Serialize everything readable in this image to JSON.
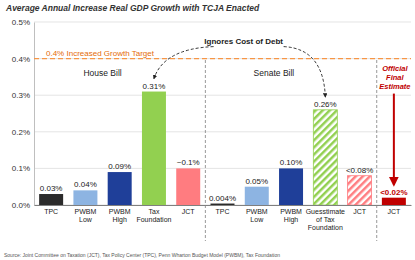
{
  "chart_data": {
    "type": "bar",
    "title": "Average Annual Increase Real GDP Growth with TCJA Enacted",
    "categories": [
      "TPC",
      "PWBM\nLow",
      "PWBM\nHigh",
      "Tax\nFoundation",
      "JCT",
      "TPC",
      "PWBM\nLow",
      "PWBM\nHigh",
      "Guesstimate\nof Tax\nFoundation",
      "JCT",
      "JCT"
    ],
    "values": [
      0.03,
      0.04,
      0.09,
      0.31,
      0.1,
      0.004,
      0.05,
      0.1,
      0.26,
      0.08,
      0.02
    ],
    "value_labels": [
      "0.03%",
      "0.04%",
      "0.09%",
      "0.31%",
      "~0.1%",
      "0.004%",
      "0.05%",
      "0.10%",
      "0.26%",
      "<0.08%",
      "<0.02%"
    ],
    "colors": [
      "#2b2b2b",
      "#8db4e2",
      "#1f3f99",
      "#92d050",
      "#ff7c80",
      "#2b2b2b",
      "#8db4e2",
      "#1f3f99",
      "#92d050",
      "#ff7c80",
      "#c00000"
    ],
    "ylim": [
      0,
      0.5
    ],
    "yticks": [
      {
        "value": 0,
        "label": "0.0%"
      },
      {
        "value": 0.1,
        "label": "0.1%"
      },
      {
        "value": 0.2,
        "label": "0.2%"
      },
      {
        "value": 0.3,
        "label": "0.3%"
      },
      {
        "value": 0.4,
        "label": "0.4%"
      },
      {
        "value": 0.5,
        "label": "0.5%"
      }
    ],
    "grid": true,
    "data_labels": true,
    "annotations": [
      {
        "text": "0.4% Increased Growth Target",
        "value": 0.4
      },
      {
        "text": "Ignores Cost of Debt"
      },
      {
        "text": "House Bill"
      },
      {
        "text": "Senate Bill"
      },
      {
        "text": "Official\nFinal\nEstimate"
      }
    ],
    "source": "Source: Joint Committee on Taxation (JCT), Tax Policy Center (TPC), Penn Wharton Budget Model (PWBM), Tax Foundation"
  }
}
